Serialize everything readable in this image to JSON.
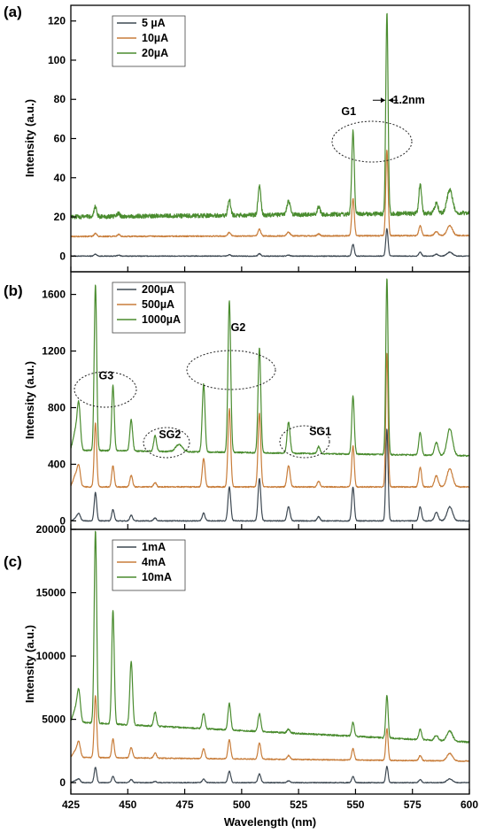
{
  "chart_data": [
    {
      "panel": "(a)",
      "type": "line",
      "xlabel": "Wavelength (nm)",
      "ylabel": "Intensity (a.u.)",
      "xlim": [
        425,
        600
      ],
      "ylim": [
        -8,
        128
      ],
      "yticks": [
        0,
        20,
        40,
        60,
        80,
        100,
        120
      ],
      "xticks": [
        425,
        450,
        475,
        500,
        525,
        550,
        575,
        600
      ],
      "legend_position": "top-left",
      "series": [
        {
          "name": "5 µA",
          "color": "#3d4852",
          "offset": 0,
          "noise": 0.2,
          "baseline": [
            0,
            0
          ],
          "peaks": [
            [
              435.8,
              1,
              0.6
            ],
            [
              446,
              0.5,
              0.6
            ],
            [
              494.6,
              0.7,
              0.6
            ],
            [
              507.8,
              1.2,
              0.6
            ],
            [
              520.6,
              0.5,
              0.6
            ],
            [
              548.9,
              6,
              0.55
            ],
            [
              563.8,
              14,
              0.5
            ],
            [
              578.4,
              2,
              0.6
            ],
            [
              585.5,
              1,
              0.8
            ],
            [
              591.4,
              2,
              1.2
            ]
          ]
        },
        {
          "name": "10µA",
          "color": "#c87d3a",
          "offset": 10,
          "noise": 0.3,
          "baseline": [
            0,
            0.5
          ],
          "peaks": [
            [
              435.8,
              1.5,
              0.6
            ],
            [
              446,
              1,
              0.6
            ],
            [
              494.6,
              2,
              0.6
            ],
            [
              507.8,
              3.5,
              0.6
            ],
            [
              520.6,
              2,
              0.7
            ],
            [
              533.8,
              1,
              0.6
            ],
            [
              548.9,
              19,
              0.55
            ],
            [
              563.8,
              44,
              0.5
            ],
            [
              578.4,
              5,
              0.6
            ],
            [
              585.5,
              2,
              0.8
            ],
            [
              591.4,
              5,
              1.2
            ]
          ]
        },
        {
          "name": "20µA",
          "color": "#4a8c2f",
          "offset": 20,
          "noise": 1.1,
          "baseline": [
            0,
            2
          ],
          "peaks": [
            [
              435.8,
              5,
              0.6
            ],
            [
              446,
              1.5,
              0.6
            ],
            [
              494.6,
              8,
              0.6
            ],
            [
              507.8,
              15,
              0.6
            ],
            [
              520.6,
              7,
              0.7
            ],
            [
              533.8,
              4,
              0.6
            ],
            [
              548.9,
              42,
              0.55
            ],
            [
              563.8,
              103,
              0.5
            ],
            [
              578.4,
              15,
              0.6
            ],
            [
              585.5,
              5,
              0.8
            ],
            [
              591.4,
              12,
              1.2
            ]
          ]
        }
      ],
      "annotations": [
        {
          "text": "G1",
          "x": 547,
          "y": 72
        },
        {
          "text": "1.2nm",
          "x": 566,
          "y": 80
        }
      ]
    },
    {
      "panel": "(b)",
      "type": "line",
      "xlabel": "Wavelength (nm)",
      "ylabel": "Intensity (a.u.)",
      "xlim": [
        425,
        600
      ],
      "ylim": [
        -60,
        1760
      ],
      "yticks": [
        0,
        400,
        800,
        1200,
        1600
      ],
      "xticks": [
        425,
        450,
        475,
        500,
        525,
        550,
        575,
        600
      ],
      "legend_position": "top-left",
      "series": [
        {
          "name": "200µA",
          "color": "#3d4852",
          "offset": 0,
          "noise": 3,
          "baseline": [
            0,
            0
          ],
          "peaks": [
            [
              427,
              20,
              0.8
            ],
            [
              428.5,
              50,
              0.7
            ],
            [
              435.8,
              200,
              0.55
            ],
            [
              443.5,
              80,
              0.55
            ],
            [
              451.5,
              40,
              0.6
            ],
            [
              462,
              20,
              0.6
            ],
            [
              483.3,
              55,
              0.6
            ],
            [
              494.6,
              240,
              0.6
            ],
            [
              507.8,
              300,
              0.6
            ],
            [
              520.6,
              100,
              0.65
            ],
            [
              533.8,
              30,
              0.6
            ],
            [
              548.9,
              240,
              0.55
            ],
            [
              563.8,
              650,
              0.5
            ],
            [
              578.4,
              100,
              0.6
            ],
            [
              585.5,
              60,
              0.8
            ],
            [
              591.4,
              100,
              1.2
            ]
          ]
        },
        {
          "name": "500µA",
          "color": "#c87d3a",
          "offset": 240,
          "noise": 4,
          "baseline": [
            0,
            0
          ],
          "peaks": [
            [
              427,
              80,
              1
            ],
            [
              428.5,
              130,
              0.7
            ],
            [
              435.8,
              450,
              0.55
            ],
            [
              443.5,
              150,
              0.55
            ],
            [
              451.5,
              80,
              0.6
            ],
            [
              462,
              30,
              0.6
            ],
            [
              483.3,
              200,
              0.6
            ],
            [
              494.6,
              550,
              0.6
            ],
            [
              507.8,
              520,
              0.6
            ],
            [
              520.6,
              150,
              0.65
            ],
            [
              533.8,
              40,
              0.6
            ],
            [
              548.9,
              290,
              0.55
            ],
            [
              563.8,
              950,
              0.5
            ],
            [
              578.4,
              140,
              0.6
            ],
            [
              585.5,
              80,
              0.8
            ],
            [
              591.4,
              130,
              1.2
            ]
          ]
        },
        {
          "name": "1000µA",
          "color": "#4a8c2f",
          "offset": 460,
          "noise": 5,
          "baseline": [
            40,
            0
          ],
          "peaks": [
            [
              427,
              130,
              1
            ],
            [
              428.5,
              300,
              0.7
            ],
            [
              435.8,
              1170,
              0.55
            ],
            [
              443.5,
              460,
              0.55
            ],
            [
              451.5,
              220,
              0.6
            ],
            [
              462,
              110,
              0.6
            ],
            [
              472.5,
              50,
              1.5
            ],
            [
              483.3,
              480,
              0.6
            ],
            [
              494.6,
              1070,
              0.6
            ],
            [
              507.8,
              740,
              0.6
            ],
            [
              520.6,
              220,
              0.65
            ],
            [
              533.8,
              50,
              0.6
            ],
            [
              548.9,
              410,
              0.55
            ],
            [
              563.8,
              1250,
              0.5
            ],
            [
              578.4,
              160,
              0.6
            ],
            [
              585.5,
              90,
              0.8
            ],
            [
              591.4,
              190,
              1.2
            ]
          ]
        }
      ],
      "annotations": [
        {
          "text": "G3",
          "x": 440.5,
          "y": 1000
        },
        {
          "text": "SG2",
          "x": 468.5,
          "y": 585
        },
        {
          "text": "G2",
          "x": 498.5,
          "y": 1340
        },
        {
          "text": "SG1",
          "x": 534.5,
          "y": 605
        }
      ]
    },
    {
      "panel": "(c)",
      "type": "line",
      "xlabel": "Wavelength (nm)",
      "ylabel": "Intensity (a.u.)",
      "xlim": [
        425,
        600
      ],
      "ylim": [
        -900,
        20000
      ],
      "yticks": [
        0,
        5000,
        10000,
        15000,
        20000
      ],
      "xticks": [
        425,
        450,
        475,
        500,
        525,
        550,
        575,
        600
      ],
      "legend_position": "top-left",
      "series": [
        {
          "name": "1mA",
          "color": "#3d4852",
          "offset": 0,
          "noise": 30,
          "baseline": [
            0,
            0
          ],
          "peaks": [
            [
              427,
              150,
              1
            ],
            [
              428.5,
              250,
              0.7
            ],
            [
              435.8,
              1200,
              0.55
            ],
            [
              443.5,
              500,
              0.55
            ],
            [
              451.5,
              250,
              0.6
            ],
            [
              462,
              100,
              0.6
            ],
            [
              483.3,
              300,
              0.6
            ],
            [
              494.6,
              900,
              0.6
            ],
            [
              507.8,
              700,
              0.6
            ],
            [
              520.6,
              150,
              0.65
            ],
            [
              548.9,
              500,
              0.55
            ],
            [
              563.8,
              1300,
              0.5
            ],
            [
              578.4,
              250,
              0.6
            ],
            [
              591.4,
              300,
              1.2
            ]
          ]
        },
        {
          "name": "4mA",
          "color": "#c87d3a",
          "offset": 1700,
          "noise": 40,
          "baseline": [
            300,
            0
          ],
          "peaks": [
            [
              427,
              500,
              1
            ],
            [
              428.5,
              1100,
              0.7
            ],
            [
              435.8,
              4900,
              0.55
            ],
            [
              443.5,
              1500,
              0.55
            ],
            [
              451.5,
              800,
              0.6
            ],
            [
              462,
              400,
              0.6
            ],
            [
              483.3,
              800,
              0.6
            ],
            [
              494.6,
              1500,
              0.6
            ],
            [
              507.8,
              1300,
              0.6
            ],
            [
              520.6,
              300,
              0.65
            ],
            [
              548.9,
              900,
              0.55
            ],
            [
              563.8,
              2500,
              0.5
            ],
            [
              578.4,
              400,
              0.6
            ],
            [
              591.4,
              600,
              1.2
            ]
          ]
        },
        {
          "name": "10mA",
          "color": "#4a8c2f",
          "offset": 3000,
          "noise": 60,
          "baseline": [
            1800,
            200
          ],
          "peaks": [
            [
              427,
              1000,
              1
            ],
            [
              428.5,
              2300,
              0.7
            ],
            [
              435.8,
              15200,
              0.55
            ],
            [
              443.5,
              9000,
              0.55
            ],
            [
              451.5,
              5000,
              0.6
            ],
            [
              462,
              1100,
              0.6
            ],
            [
              483.3,
              1200,
              0.6
            ],
            [
              494.6,
              2100,
              0.6
            ],
            [
              507.8,
              1400,
              0.6
            ],
            [
              520.6,
              300,
              0.65
            ],
            [
              548.9,
              1100,
              0.55
            ],
            [
              563.8,
              3400,
              0.5
            ],
            [
              578.4,
              800,
              0.6
            ],
            [
              585.5,
              400,
              0.8
            ],
            [
              591.4,
              800,
              1.2
            ]
          ]
        }
      ],
      "annotations": []
    }
  ]
}
